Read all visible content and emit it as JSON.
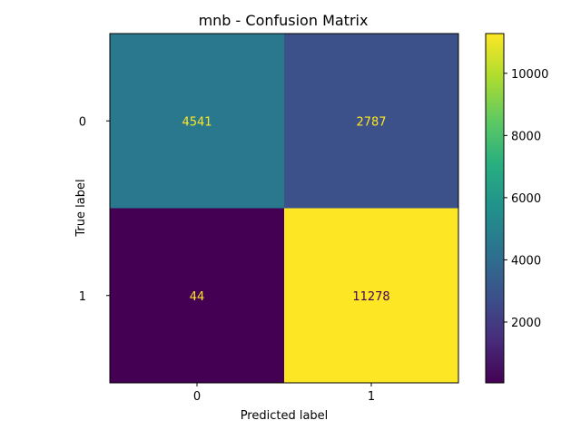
{
  "chart_data": {
    "type": "heatmap",
    "title": "mnb - Confusion Matrix",
    "xlabel": "Predicted label",
    "ylabel": "True label",
    "x_categories": [
      "0",
      "1"
    ],
    "y_categories": [
      "0",
      "1"
    ],
    "values": [
      [
        4541,
        2787
      ],
      [
        44,
        11278
      ]
    ],
    "cell_labels": [
      [
        "4541",
        "2787"
      ],
      [
        "44",
        "11278"
      ]
    ],
    "colormap": "viridis",
    "colorbar": {
      "range": [
        44,
        11278
      ],
      "ticks": [
        2000,
        4000,
        6000,
        8000,
        10000
      ],
      "tick_labels": [
        "2000",
        "4000",
        "6000",
        "8000",
        "10000"
      ]
    },
    "grid": false
  }
}
